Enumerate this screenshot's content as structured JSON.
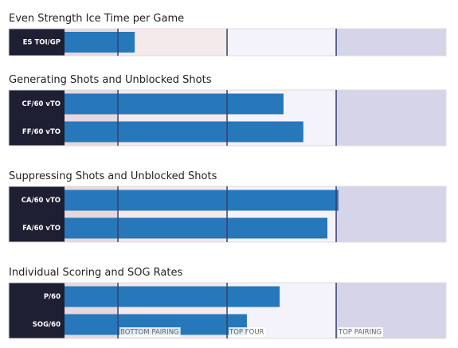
{
  "chart_data": [
    {
      "type": "bar",
      "title": "Even Strength Ice Time per Game",
      "categories": [
        "ES TOI/GP"
      ],
      "values": [
        18.4
      ],
      "color": "#2777bb"
    },
    {
      "type": "bar",
      "title": "Generating Shots and Unblocked Shots",
      "categories": [
        "CF/60 vTO",
        "FF/60 vTO"
      ],
      "values": [
        57.4,
        62.6
      ],
      "color": "#2777bb"
    },
    {
      "type": "bar",
      "title": "Suppressing Shots and Unblocked Shots",
      "categories": [
        "CA/60 vTO",
        "FA/60 vTO"
      ],
      "values": [
        71.8,
        68.9
      ],
      "color": "#2777bb"
    },
    {
      "type": "bar",
      "title": "Individual Scoring and SOG Rates",
      "categories": [
        "P/60",
        "SOG/60"
      ],
      "values": [
        56.4,
        47.8
      ],
      "color": "#2777bb"
    }
  ],
  "xlim": [
    0,
    100
  ],
  "tiers": [
    {
      "label": "BOTTOM PAIRING",
      "value": 14
    },
    {
      "label": "TOP FOUR",
      "value": 42.6
    },
    {
      "label": "TOP PAIRING",
      "value": 71.2
    }
  ]
}
